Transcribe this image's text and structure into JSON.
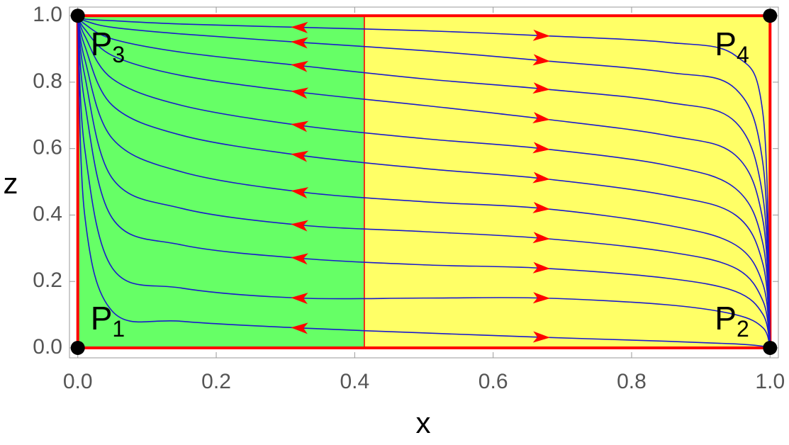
{
  "chart_data": {
    "type": "phase-portrait",
    "x_label": "x",
    "y_label": "z",
    "xlim": [
      -0.012,
      1.012
    ],
    "ylim": [
      -0.03,
      1.026
    ],
    "xticks": [
      {
        "value": 0,
        "label": "0.0"
      },
      0.2,
      0.4,
      0.6,
      0.8,
      {
        "value": 1,
        "label": "1.0"
      }
    ],
    "yticks": [
      {
        "value": 0,
        "label": "0.0"
      },
      0.2,
      0.4,
      0.6,
      0.8,
      {
        "value": 1,
        "label": "1.0"
      }
    ],
    "regions": [
      {
        "x": [
          0,
          0.414
        ],
        "color": "#66ff66",
        "flow": "left",
        "arrow_x": 0.32
      },
      {
        "x": [
          0.414,
          1
        ],
        "color": "#ffff66",
        "flow": "right",
        "arrow_x": 0.67
      }
    ],
    "border_color": "#ff0000",
    "line_color": "#1a1acc",
    "arrow_color": "#ff0000",
    "x": [
      0,
      0.01,
      0.05,
      0.15,
      0.32,
      0.5,
      0.67,
      0.85,
      0.95,
      0.99,
      1
    ],
    "streamlines": [
      {
        "values": [
          1,
          0.99,
          0.985,
          0.975,
          0.965,
          0.955,
          0.94,
          0.92,
          0.88,
          0.7,
          0
        ]
      },
      {
        "values": [
          1,
          0.985,
          0.965,
          0.945,
          0.92,
          0.895,
          0.865,
          0.83,
          0.78,
          0.55,
          0
        ]
      },
      {
        "values": [
          1,
          0.975,
          0.93,
          0.89,
          0.85,
          0.81,
          0.78,
          0.74,
          0.68,
          0.45,
          0
        ]
      },
      {
        "values": [
          1,
          0.96,
          0.88,
          0.82,
          0.77,
          0.73,
          0.69,
          0.64,
          0.58,
          0.38,
          0
        ]
      },
      {
        "values": [
          1,
          0.94,
          0.81,
          0.73,
          0.67,
          0.63,
          0.6,
          0.55,
          0.48,
          0.31,
          0
        ]
      },
      {
        "values": [
          1,
          0.91,
          0.73,
          0.64,
          0.58,
          0.54,
          0.51,
          0.46,
          0.4,
          0.25,
          0
        ]
      },
      {
        "values": [
          1,
          0.87,
          0.63,
          0.53,
          0.47,
          0.44,
          0.42,
          0.37,
          0.31,
          0.19,
          0
        ]
      },
      {
        "values": [
          1,
          0.82,
          0.51,
          0.42,
          0.37,
          0.35,
          0.33,
          0.29,
          0.24,
          0.14,
          0
        ]
      },
      {
        "values": [
          1,
          0.74,
          0.39,
          0.31,
          0.27,
          0.25,
          0.24,
          0.21,
          0.17,
          0.1,
          0
        ]
      },
      {
        "values": [
          1,
          0.6,
          0.24,
          0.18,
          0.15,
          0.15,
          0.15,
          0.13,
          0.1,
          0.06,
          0
        ]
      },
      {
        "values": [
          1,
          0.4,
          0.11,
          0.08,
          0.06,
          0.045,
          0.032,
          0.02,
          0.012,
          0.005,
          0
        ]
      }
    ],
    "points": [
      {
        "name": "P",
        "sub": "1",
        "x": 0,
        "z": 0
      },
      {
        "name": "P",
        "sub": "2",
        "x": 1,
        "z": 0
      },
      {
        "name": "P",
        "sub": "3",
        "x": 0,
        "z": 1
      },
      {
        "name": "P",
        "sub": "4",
        "x": 1,
        "z": 1
      }
    ]
  }
}
